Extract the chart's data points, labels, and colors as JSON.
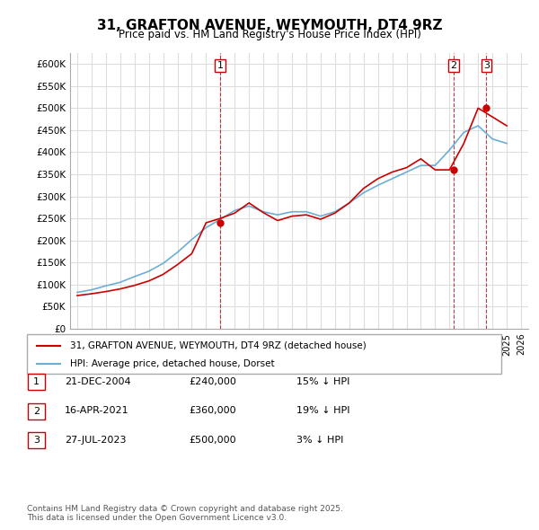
{
  "title": "31, GRAFTON AVENUE, WEYMOUTH, DT4 9RZ",
  "subtitle": "Price paid vs. HM Land Registry's House Price Index (HPI)",
  "ylabel": "",
  "ylim": [
    0,
    625000
  ],
  "yticks": [
    0,
    50000,
    100000,
    150000,
    200000,
    250000,
    300000,
    350000,
    400000,
    450000,
    500000,
    550000,
    600000
  ],
  "ytick_labels": [
    "£0",
    "£50K",
    "£100K",
    "£150K",
    "£200K",
    "£250K",
    "£300K",
    "£350K",
    "£400K",
    "£450K",
    "£500K",
    "£550K",
    "£600K"
  ],
  "xlim_start": 1994.5,
  "xlim_end": 2026.5,
  "hpi_color": "#6baed6",
  "price_color": "#cc0000",
  "marker_color": "#cc0000",
  "legend_label_price": "31, GRAFTON AVENUE, WEYMOUTH, DT4 9RZ (detached house)",
  "legend_label_hpi": "HPI: Average price, detached house, Dorset",
  "footnote": "Contains HM Land Registry data © Crown copyright and database right 2025.\nThis data is licensed under the Open Government Licence v3.0.",
  "table": [
    [
      "1",
      "21-DEC-2004",
      "£240,000",
      "15% ↓ HPI"
    ],
    [
      "2",
      "16-APR-2021",
      "£360,000",
      "19% ↓ HPI"
    ],
    [
      "3",
      "27-JUL-2023",
      "£500,000",
      "3% ↓ HPI"
    ]
  ],
  "sale_dates": [
    2004.97,
    2021.29,
    2023.57
  ],
  "sale_prices": [
    240000,
    360000,
    500000
  ],
  "background_color": "#ffffff",
  "grid_color": "#dddddd",
  "hpi_years": [
    1995,
    1996,
    1997,
    1998,
    1999,
    2000,
    2001,
    2002,
    2003,
    2004,
    2005,
    2006,
    2007,
    2008,
    2009,
    2010,
    2011,
    2012,
    2013,
    2014,
    2015,
    2016,
    2017,
    2018,
    2019,
    2020,
    2021,
    2022,
    2023,
    2024,
    2025
  ],
  "hpi_values": [
    82000,
    88000,
    97000,
    105000,
    118000,
    130000,
    148000,
    173000,
    202000,
    229000,
    248000,
    268000,
    278000,
    265000,
    258000,
    265000,
    265000,
    255000,
    265000,
    285000,
    308000,
    325000,
    340000,
    355000,
    370000,
    370000,
    405000,
    445000,
    460000,
    430000,
    420000
  ],
  "price_years": [
    1995,
    1996,
    1997,
    1998,
    1999,
    2000,
    2001,
    2002,
    2003,
    2004,
    2005,
    2006,
    2007,
    2008,
    2009,
    2010,
    2011,
    2012,
    2013,
    2014,
    2015,
    2016,
    2017,
    2018,
    2019,
    2020,
    2021,
    2022,
    2023,
    2024,
    2025
  ],
  "price_values": [
    75000,
    79000,
    84000,
    90000,
    98000,
    108000,
    123000,
    145000,
    170000,
    240000,
    250000,
    262000,
    285000,
    263000,
    245000,
    255000,
    258000,
    248000,
    262000,
    285000,
    318000,
    340000,
    355000,
    365000,
    385000,
    360000,
    360000,
    420000,
    500000,
    480000,
    460000
  ]
}
